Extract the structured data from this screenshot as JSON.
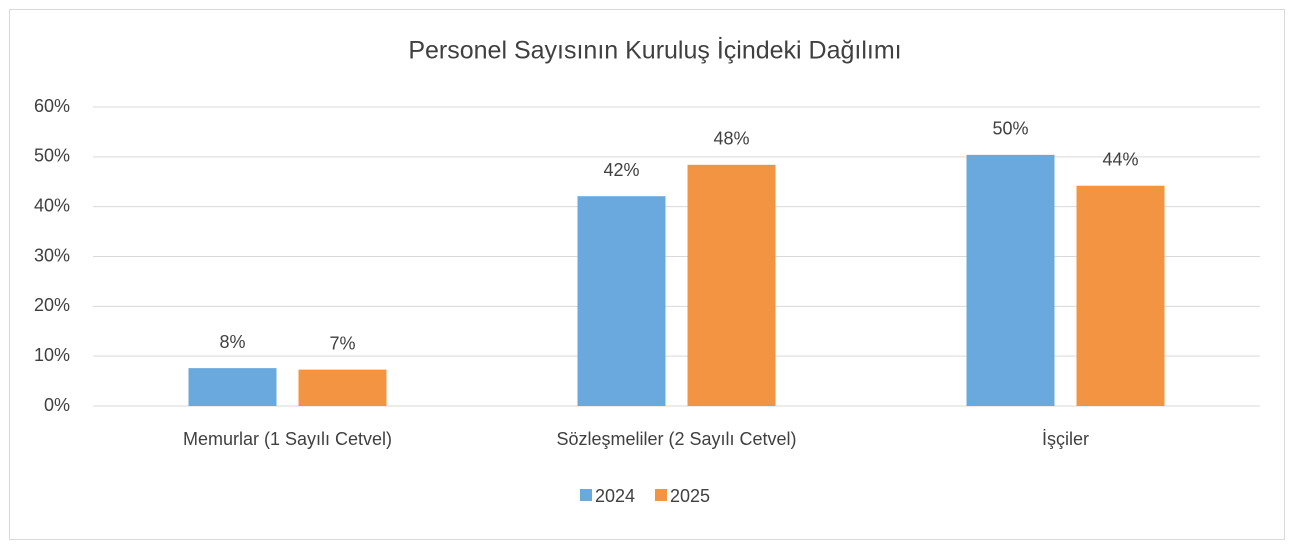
{
  "chart_data": {
    "type": "bar",
    "title": "Personel Sayısının Kuruluş İçindeki Dağılımı",
    "categories": [
      "Memurlar (1 Sayılı Cetvel)",
      "Sözleşmeliler (2 Sayılı Cetvel)",
      "İşçiler"
    ],
    "series": [
      {
        "name": "2024",
        "color": "#6aa9de",
        "values": [
          7.6,
          42.1,
          50.4
        ],
        "value_labels": [
          "8%",
          "42%",
          "50%"
        ]
      },
      {
        "name": "2025",
        "color": "#f39442",
        "values": [
          7.3,
          48.4,
          44.2
        ],
        "value_labels": [
          "7%",
          "48%",
          "44%"
        ]
      }
    ],
    "ylim": [
      0,
      60
    ],
    "yticks": [
      {
        "value": 0,
        "label": "0%"
      },
      {
        "value": 10,
        "label": "10%"
      },
      {
        "value": 20,
        "label": "20%"
      },
      {
        "value": 30,
        "label": "30%"
      },
      {
        "value": 40,
        "label": "40%"
      },
      {
        "value": 50,
        "label": "50%"
      },
      {
        "value": 60,
        "label": "60%"
      }
    ],
    "grid": true,
    "legend": "bottom"
  }
}
